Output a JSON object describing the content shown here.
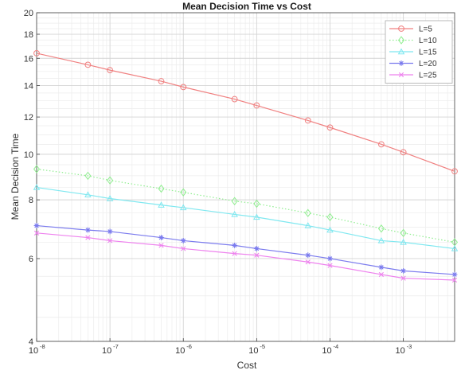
{
  "chart_data": {
    "type": "line",
    "title": "Mean Decision Time vs Cost",
    "xlabel": "Cost",
    "ylabel": "Mean Decision Time",
    "xscale": "log",
    "yscale": "log",
    "xlim": [
      1e-08,
      0.005
    ],
    "ylim": [
      4,
      20
    ],
    "x": [
      1e-08,
      5e-08,
      1e-07,
      5e-07,
      1e-06,
      5e-06,
      1e-05,
      5e-05,
      0.0001,
      0.0005,
      0.001,
      0.005
    ],
    "x_ticks": [
      {
        "value": 1e-08,
        "base": "10",
        "exp": "-8"
      },
      {
        "value": 1e-07,
        "base": "10",
        "exp": "-7"
      },
      {
        "value": 1e-06,
        "base": "10",
        "exp": "-6"
      },
      {
        "value": 1e-05,
        "base": "10",
        "exp": "-5"
      },
      {
        "value": 0.0001,
        "base": "10",
        "exp": "-4"
      },
      {
        "value": 0.001,
        "base": "10",
        "exp": "-3"
      }
    ],
    "y_ticks": [
      {
        "value": 4,
        "label": "4"
      },
      {
        "value": 6,
        "label": "6"
      },
      {
        "value": 8,
        "label": "8"
      },
      {
        "value": 10,
        "label": "10"
      },
      {
        "value": 12,
        "label": "12"
      },
      {
        "value": 14,
        "label": "14"
      },
      {
        "value": 16,
        "label": "16"
      },
      {
        "value": 18,
        "label": "18"
      },
      {
        "value": 20,
        "label": "20"
      }
    ],
    "grid": true,
    "minor_grid": true,
    "legend_position": "top-right",
    "series": [
      {
        "name": "L=5",
        "color": "#f08080",
        "marker": "circle",
        "line": "solid",
        "values": [
          16.4,
          15.5,
          15.1,
          14.3,
          13.9,
          13.1,
          12.7,
          11.8,
          11.4,
          10.5,
          10.1,
          9.2
        ]
      },
      {
        "name": "L=10",
        "color": "#90ee90",
        "marker": "diamond",
        "line": "dotted",
        "values": [
          9.3,
          9.0,
          8.8,
          8.45,
          8.3,
          7.95,
          7.85,
          7.5,
          7.35,
          6.95,
          6.8,
          6.5
        ]
      },
      {
        "name": "L=15",
        "color": "#7fe8f0",
        "marker": "triangle",
        "line": "solid",
        "values": [
          8.5,
          8.2,
          8.05,
          7.8,
          7.7,
          7.45,
          7.35,
          7.05,
          6.9,
          6.55,
          6.5,
          6.3
        ]
      },
      {
        "name": "L=20",
        "color": "#7b7bee",
        "marker": "asterisk",
        "line": "solid",
        "values": [
          7.05,
          6.9,
          6.85,
          6.65,
          6.55,
          6.4,
          6.3,
          6.1,
          6.0,
          5.75,
          5.65,
          5.55
        ]
      },
      {
        "name": "L=25",
        "color": "#ee82ee",
        "marker": "x",
        "line": "solid",
        "values": [
          6.8,
          6.65,
          6.55,
          6.4,
          6.3,
          6.15,
          6.1,
          5.9,
          5.8,
          5.55,
          5.45,
          5.4
        ]
      }
    ]
  }
}
